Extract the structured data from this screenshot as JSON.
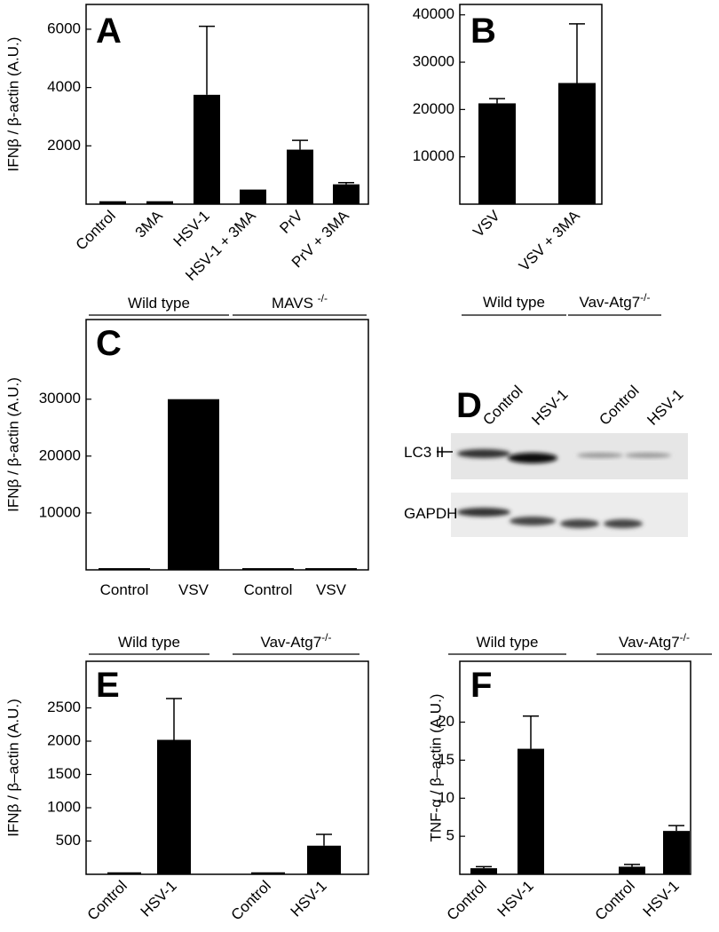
{
  "chart_data": [
    {
      "type": "bar",
      "panel": "A",
      "ylabel": "IFNβ / β-actin (A.U.)",
      "color": "#000000",
      "categories": [
        "Control",
        "3MA",
        "HSV-1",
        "HSV-1 + 3MA",
        "PrV",
        "PrV + 3MA"
      ],
      "values": [
        100,
        100,
        3750,
        500,
        1870,
        680
      ],
      "errors": [
        0,
        0,
        2350,
        0,
        320,
        60
      ],
      "ylim": [
        0,
        6850
      ],
      "yticks": [
        2000,
        4000,
        6000
      ]
    },
    {
      "type": "bar",
      "panel": "B",
      "color": "#000000",
      "categories": [
        "VSV",
        "VSV + 3MA"
      ],
      "values": [
        21300,
        25600
      ],
      "errors": [
        1000,
        12500
      ],
      "ylim": [
        0,
        42200
      ],
      "yticks": [
        10000,
        20000,
        30000,
        40000
      ]
    },
    {
      "type": "bar",
      "panel": "C",
      "ylabel": "IFNβ / β-actin (A.U.)",
      "color": "#000000",
      "groups": [
        {
          "name": "Wild type"
        },
        {
          "name": "MAVS ",
          "sup": "-/-"
        }
      ],
      "categories": [
        "Control",
        "VSV",
        "Control",
        "VSV"
      ],
      "values": [
        300,
        30000,
        300,
        300
      ],
      "ylim": [
        0,
        44000
      ],
      "yticks": [
        10000,
        20000,
        30000
      ]
    },
    {
      "type": "bar",
      "panel": "E",
      "ylabel": "IFNβ / β–actin (A.U.)",
      "color": "#000000",
      "groups": [
        {
          "name": "Wild type"
        },
        {
          "name": "Vav-Atg7",
          "sup": "-/-"
        }
      ],
      "categories": [
        "Control",
        "HSV-1",
        "Control",
        "HSV-1"
      ],
      "values": [
        30,
        2020,
        30,
        430
      ],
      "errors": [
        0,
        620,
        0,
        170
      ],
      "ylim": [
        0,
        3200
      ],
      "yticks": [
        500,
        1000,
        1500,
        2000,
        2500
      ]
    },
    {
      "type": "bar",
      "panel": "F",
      "ylabel": "TNF-α / β–actin (A.U.)",
      "color": "#000000",
      "groups": [
        {
          "name": "Wild type"
        },
        {
          "name": "Vav-Atg7",
          "sup": "-/-"
        }
      ],
      "categories": [
        "Control",
        "HSV-1",
        "Control",
        "HSV-1"
      ],
      "values": [
        0.8,
        16.5,
        1.0,
        5.7
      ],
      "errors": [
        0.2,
        4.3,
        0.3,
        0.7
      ],
      "ylim": [
        0,
        28
      ],
      "yticks": [
        5,
        10,
        15,
        20
      ]
    }
  ],
  "blot": {
    "panel": "D",
    "groups": [
      {
        "name": "Wild type"
      },
      {
        "name": "Vav-Atg7",
        "sup": "-/-"
      }
    ],
    "lanes": [
      "Control",
      "HSV-1",
      "Control",
      "HSV-1"
    ],
    "rows": [
      "LC3 II",
      "GAPDH"
    ]
  }
}
